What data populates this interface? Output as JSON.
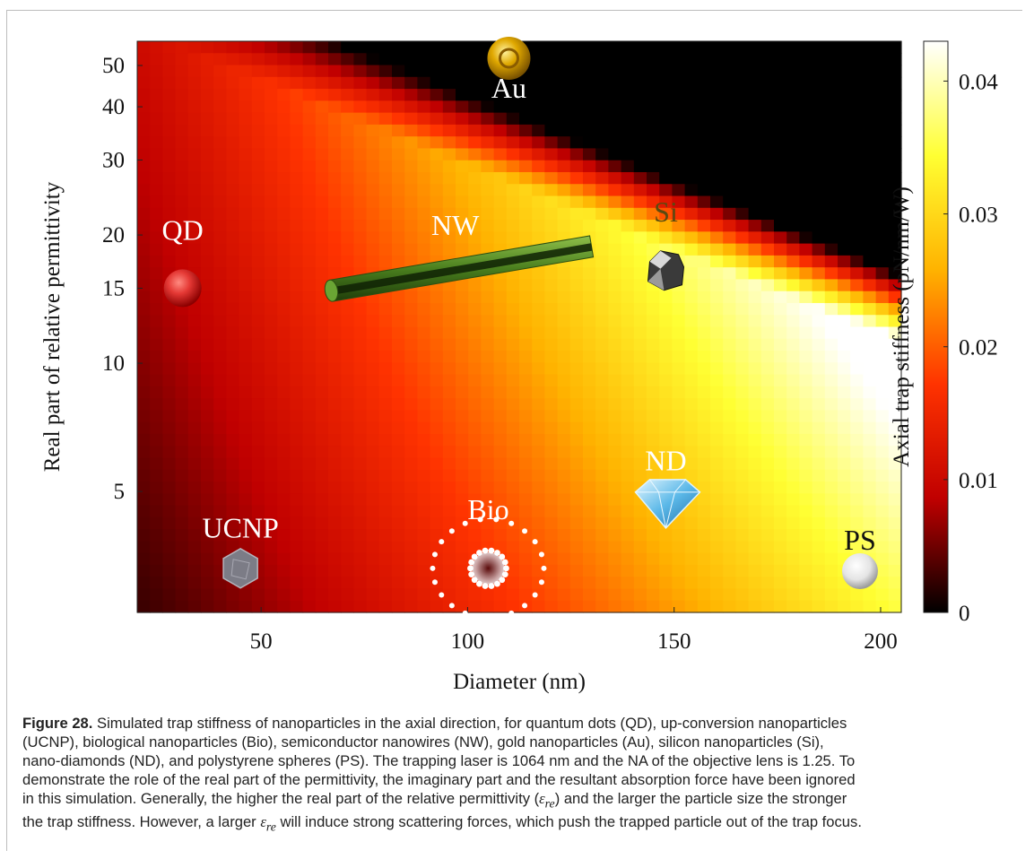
{
  "chart_data": {
    "type": "heatmap",
    "xlabel": "Diameter (nm)",
    "ylabel": "Real part of relative permittivity",
    "colorbar_label": "Axial trap stiffness (pN/nm/W)",
    "x_ticks": [
      50,
      100,
      150,
      200
    ],
    "x_tick_labels": [
      "50",
      "100",
      "150",
      "200"
    ],
    "xlim": [
      20,
      205
    ],
    "y_scale": "log",
    "y_ticks": [
      5,
      10,
      15,
      20,
      30,
      40,
      50
    ],
    "y_tick_labels": [
      "5",
      "10",
      "15",
      "20",
      "30",
      "40",
      "50"
    ],
    "ylim": [
      2.6,
      57
    ],
    "colorbar_ticks": [
      0,
      0.01,
      0.02,
      0.03,
      0.04
    ],
    "colorbar_tick_labels": [
      "0",
      "0.01",
      "0.02",
      "0.03",
      "0.04"
    ],
    "colorbar_range": [
      0,
      0.043
    ],
    "colormap": [
      "#000000",
      "#c00000",
      "#ff3300",
      "#ffb300",
      "#ffff33",
      "#ffffff"
    ],
    "annotations": [
      {
        "label": "Au",
        "x": 110,
        "y": 42,
        "marker_x": 110,
        "marker_y": 52,
        "marker": "gold-sphere",
        "color": "#ffffff"
      },
      {
        "label": "NW",
        "x": 97,
        "y": 20,
        "marker": "nanowire",
        "color": "#ffffff"
      },
      {
        "label": "QD",
        "x": 31,
        "y": 19.5,
        "marker_x": 31,
        "marker_y": 15,
        "marker": "red-sphere",
        "color": "#ffffff"
      },
      {
        "label": "Si",
        "x": 148,
        "y": 21.5,
        "marker_x": 148,
        "marker_y": 16.5,
        "marker": "silicon-cube",
        "color": "#5a4a10"
      },
      {
        "label": "ND",
        "x": 148,
        "y": 5.6,
        "marker_x": 148,
        "marker_y": 4.7,
        "marker": "diamond",
        "color": "#ffffff"
      },
      {
        "label": "Bio",
        "x": 105,
        "y": 4.3,
        "marker_x": 105,
        "marker_y": 3.3,
        "marker": "bio-ring",
        "color": "#ffffff"
      },
      {
        "label": "UCNP",
        "x": 45,
        "y": 3.9,
        "marker_x": 45,
        "marker_y": 3.3,
        "marker": "hexagon",
        "color": "#ffffff"
      },
      {
        "label": "PS",
        "x": 195,
        "y": 3.65,
        "marker_x": 195,
        "marker_y": 3.25,
        "marker": "white-sphere",
        "color": "#111111"
      }
    ],
    "nanowire": {
      "x_start": 67,
      "y_start": 14.8,
      "x_end": 130,
      "y_end": 18.8
    }
  },
  "caption": {
    "label": "Figure 28.",
    "lines": [
      " Simulated trap stiffness of nanoparticles in the axial direction, for quantum dots (QD), up-conversion nanoparticles",
      "(UCNP), biological nanoparticles (Bio), semiconductor nanowires (NW), gold nanoparticles (Au), silicon nanoparticles (Si),",
      "nano-diamonds (ND), and polystyrene spheres (PS). The trapping laser is 1064 nm and the NA of the objective lens is 1.25. To",
      "demonstrate the role of the real part of the permittivity, the imaginary part and the resultant absorption force have been ignored",
      "in this simulation. Generally, the higher the real part of the relative permittivity (",
      ") and the larger the particle size the stronger",
      "the trap stiffness. However, a larger ",
      " will induce strong scattering forces, which push the trapped particle out of the trap focus."
    ],
    "symbol": "ε",
    "symbol_sub": "re"
  }
}
